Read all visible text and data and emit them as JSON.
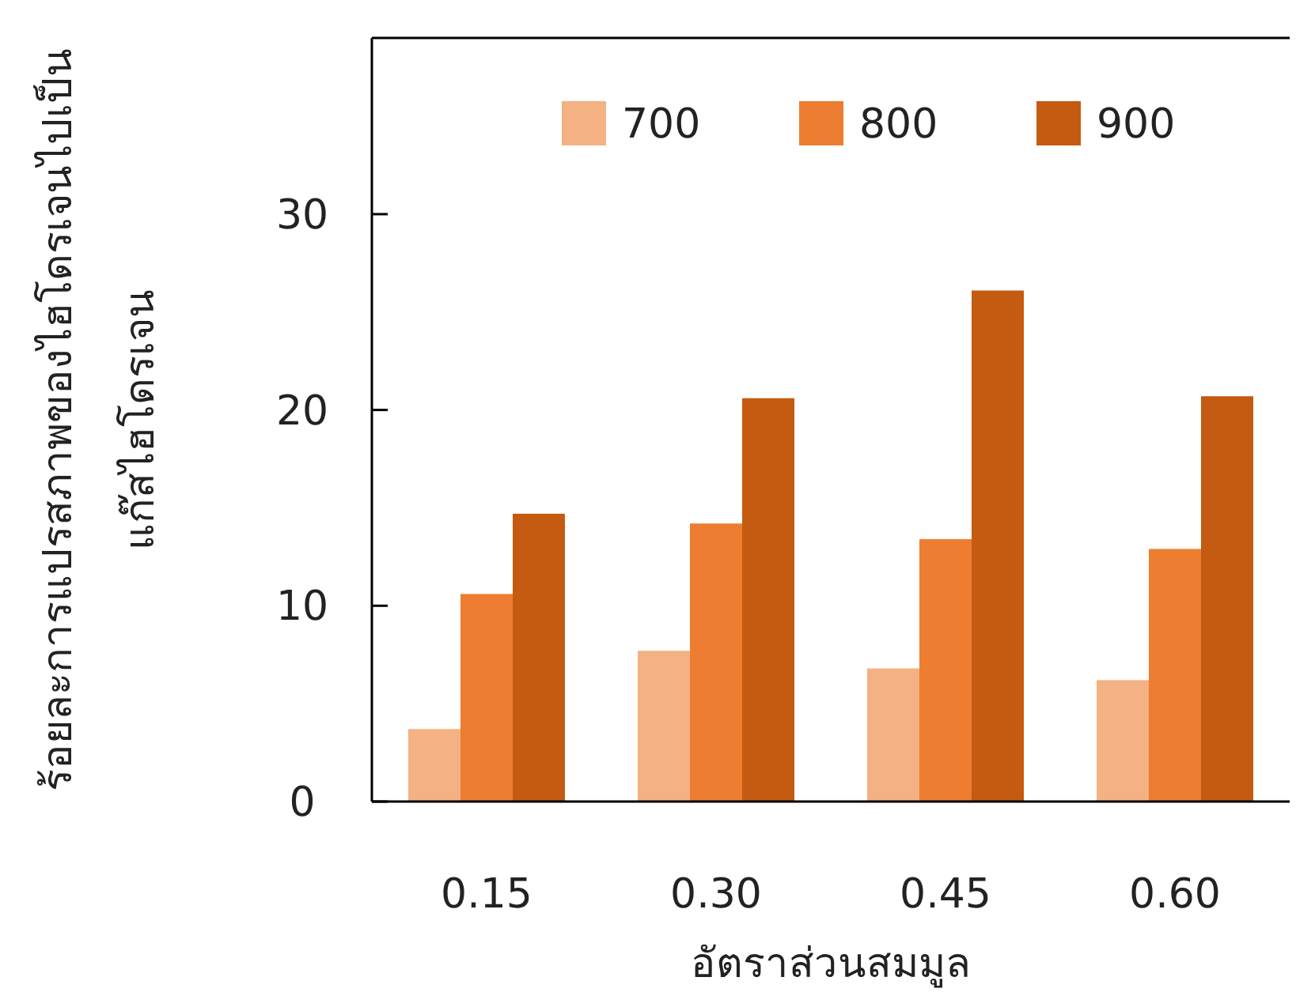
{
  "chart_data": {
    "type": "bar",
    "xlabel": "อัตราส่วนสมมูล",
    "ylabel": "ร้อยละการแปรสภาพของไฮโดรเจนไปเป็น\nแก๊สไฮโดรเจน",
    "categories": [
      "0.15",
      "0.30",
      "0.45",
      "0.60"
    ],
    "series": [
      {
        "name": "700",
        "color": "#f4b183",
        "values": [
          3.7,
          7.7,
          6.8,
          6.2
        ]
      },
      {
        "name": "800",
        "color": "#ed7d31",
        "values": [
          10.6,
          14.2,
          13.4,
          12.9
        ]
      },
      {
        "name": "900",
        "color": "#c55a11",
        "values": [
          14.7,
          20.6,
          26.1,
          20.7
        ]
      }
    ],
    "ylim": [
      0,
      39
    ],
    "yticks": [
      0,
      10,
      20,
      30
    ],
    "grid": false,
    "legend": "top"
  }
}
